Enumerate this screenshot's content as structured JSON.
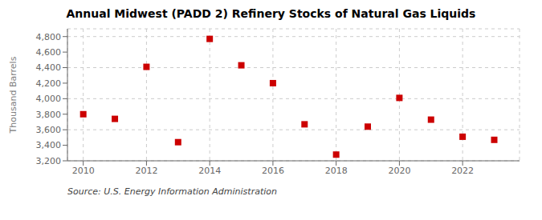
{
  "chart_data": {
    "type": "scatter",
    "title": "Annual Midwest (PADD 2) Refinery Stocks of Natural Gas Liquids",
    "y_label": "Thousand Barrels",
    "annotation": "Source: U.S. Energy Information Administration",
    "x": [
      2010,
      2011,
      2012,
      2013,
      2014,
      2015,
      2016,
      2017,
      2018,
      2019,
      2020,
      2021,
      2022,
      2023
    ],
    "values": [
      3800,
      3740,
      4410,
      3440,
      4770,
      4430,
      4200,
      3670,
      3280,
      3640,
      4010,
      3730,
      3510,
      3470
    ],
    "color": "#cc0000",
    "marker": "square",
    "xlim": [
      2009.5,
      2023.8
    ],
    "xticks": [
      2010,
      2012,
      2014,
      2016,
      2018,
      2020,
      2022
    ],
    "ylim": [
      3200,
      4900
    ],
    "yticks": [
      {
        "value": 3200,
        "label": "3,200"
      },
      {
        "value": 3400,
        "label": "3,400"
      },
      {
        "value": 3600,
        "label": "3,600"
      },
      {
        "value": 3800,
        "label": "3,800"
      },
      {
        "value": 4000,
        "label": "4,000"
      },
      {
        "value": 4200,
        "label": "4,200"
      },
      {
        "value": 4400,
        "label": "4,400"
      },
      {
        "value": 4600,
        "label": "4,600"
      },
      {
        "value": 4800,
        "label": "4,800"
      }
    ],
    "grid": true
  }
}
